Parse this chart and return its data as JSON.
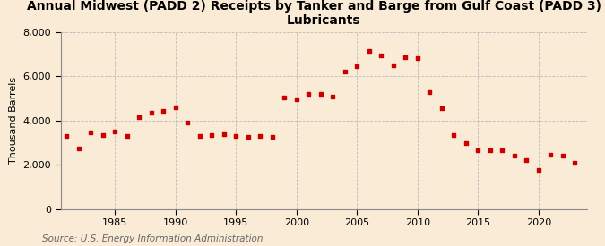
{
  "title": "Annual Midwest (PADD 2) Receipts by Tanker and Barge from Gulf Coast (PADD 3) of\nLubricants",
  "ylabel": "Thousand Barrels",
  "source": "Source: U.S. Energy Information Administration",
  "background_color": "#faebd7",
  "plot_bg_color": "#faebd7",
  "marker_color": "#cc0000",
  "years": [
    1981,
    1982,
    1983,
    1984,
    1985,
    1986,
    1987,
    1988,
    1989,
    1990,
    1991,
    1992,
    1993,
    1994,
    1995,
    1996,
    1997,
    1998,
    1999,
    2000,
    2001,
    2002,
    2003,
    2004,
    2005,
    2006,
    2007,
    2008,
    2009,
    2010,
    2011,
    2012,
    2013,
    2014,
    2015,
    2016,
    2017,
    2018,
    2019,
    2020,
    2021,
    2022,
    2023
  ],
  "values": [
    3300,
    2750,
    3450,
    3350,
    3500,
    3300,
    4150,
    4350,
    4450,
    4600,
    3900,
    3300,
    3350,
    3400,
    3300,
    3250,
    3300,
    3250,
    5050,
    4950,
    5200,
    5200,
    5100,
    6200,
    6450,
    7150,
    6950,
    6500,
    6850,
    6800,
    5300,
    4550,
    3350,
    3000,
    2650,
    2650,
    2650,
    2400,
    2200,
    1750,
    2450,
    2400,
    2100
  ],
  "xlim": [
    1980.5,
    2024
  ],
  "ylim": [
    0,
    8000
  ],
  "yticks": [
    0,
    2000,
    4000,
    6000,
    8000
  ],
  "xticks": [
    1985,
    1990,
    1995,
    2000,
    2005,
    2010,
    2015,
    2020
  ],
  "grid_color": "#bbbbbb",
  "title_fontsize": 10,
  "axis_fontsize": 8,
  "tick_fontsize": 8,
  "source_fontsize": 7.5
}
